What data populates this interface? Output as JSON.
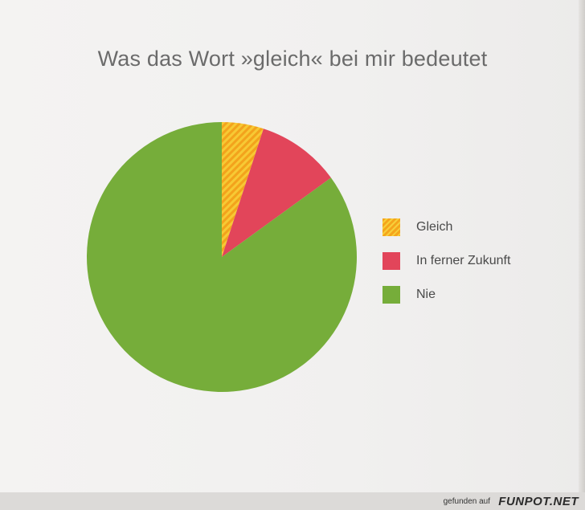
{
  "chart_data": {
    "type": "pie",
    "title": "Was das Wort »gleich« bei mir bedeutet",
    "categories": [
      "Gleich",
      "In ferner Zukunft",
      "Nie"
    ],
    "values": [
      5,
      10,
      85
    ],
    "colors": [
      "#f6b72a",
      "#e2455a",
      "#76ad3a"
    ]
  },
  "footer": {
    "text": "gefunden auf",
    "logo": "FUNPOT.NET"
  }
}
